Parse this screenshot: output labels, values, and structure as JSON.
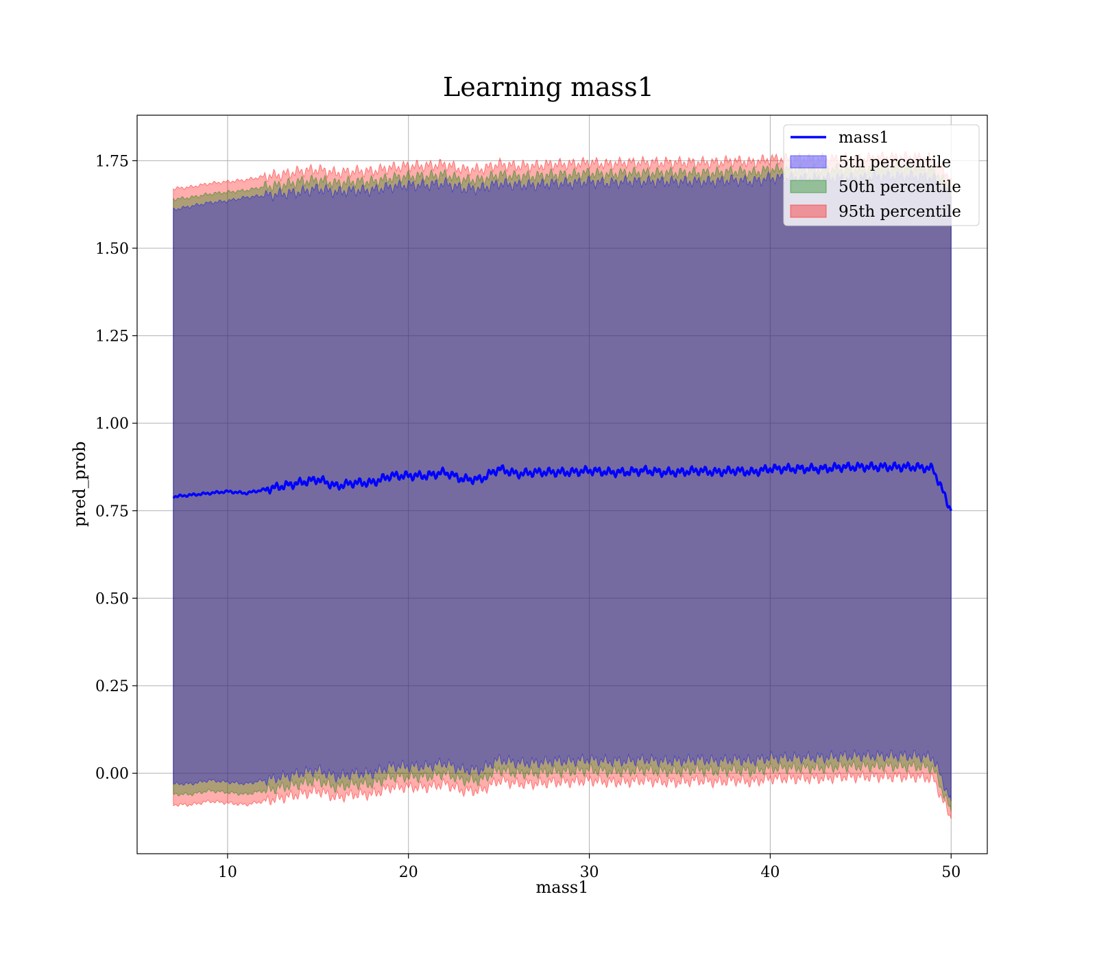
{
  "chart_data": {
    "type": "area",
    "title": "Learning mass1",
    "xlabel": "mass1",
    "ylabel": "pred_prob",
    "xlim": [
      5,
      52
    ],
    "ylim": [
      -0.23,
      1.88
    ],
    "x_ticks": [
      10,
      20,
      30,
      40,
      50
    ],
    "x_tick_labels": [
      "10",
      "20",
      "30",
      "40",
      "50"
    ],
    "y_ticks": [
      0.0,
      0.25,
      0.5,
      0.75,
      1.0,
      1.25,
      1.5,
      1.75
    ],
    "y_tick_labels": [
      "0.00",
      "0.25",
      "0.50",
      "0.75",
      "1.00",
      "1.25",
      "1.50",
      "1.75"
    ],
    "grid": true,
    "legend_position": "top-right",
    "line_series": {
      "name": "mass1",
      "color": "#0000ff",
      "x": [
        7,
        8,
        9,
        10,
        11,
        12,
        13,
        14,
        15,
        16,
        17,
        18,
        19,
        20,
        21,
        22,
        23,
        24,
        25,
        26,
        27,
        28,
        29,
        30,
        31,
        32,
        33,
        34,
        35,
        36,
        37,
        38,
        39,
        40,
        41,
        42,
        43,
        44,
        45,
        46,
        47,
        48,
        49,
        50
      ],
      "y": [
        0.79,
        0.795,
        0.8,
        0.805,
        0.8,
        0.81,
        0.82,
        0.83,
        0.84,
        0.82,
        0.83,
        0.83,
        0.85,
        0.85,
        0.85,
        0.86,
        0.84,
        0.84,
        0.87,
        0.855,
        0.86,
        0.86,
        0.86,
        0.865,
        0.86,
        0.86,
        0.865,
        0.86,
        0.86,
        0.865,
        0.86,
        0.865,
        0.86,
        0.87,
        0.87,
        0.87,
        0.87,
        0.875,
        0.875,
        0.875,
        0.875,
        0.875,
        0.87,
        0.75
      ]
    },
    "band_series": [
      {
        "name": "5th percentile",
        "color": "#0000ff",
        "upper": [
          1.61,
          1.62,
          1.63,
          1.635,
          1.645,
          1.65,
          1.655,
          1.66,
          1.67,
          1.66,
          1.665,
          1.665,
          1.675,
          1.68,
          1.68,
          1.685,
          1.67,
          1.67,
          1.685,
          1.68,
          1.68,
          1.685,
          1.685,
          1.69,
          1.685,
          1.69,
          1.69,
          1.69,
          1.69,
          1.69,
          1.69,
          1.695,
          1.69,
          1.7,
          1.7,
          1.7,
          1.7,
          1.7,
          1.7,
          1.705,
          1.705,
          1.705,
          1.7,
          1.65
        ],
        "lower": [
          -0.03,
          -0.03,
          -0.02,
          -0.025,
          -0.03,
          -0.02,
          -0.01,
          0.0,
          0.01,
          -0.01,
          0.0,
          0.0,
          0.02,
          0.02,
          0.02,
          0.03,
          0.01,
          0.01,
          0.04,
          0.03,
          0.03,
          0.035,
          0.035,
          0.04,
          0.035,
          0.035,
          0.04,
          0.035,
          0.035,
          0.04,
          0.035,
          0.04,
          0.035,
          0.045,
          0.045,
          0.045,
          0.045,
          0.05,
          0.05,
          0.05,
          0.05,
          0.05,
          0.045,
          -0.08
        ]
      },
      {
        "name": "50th percentile",
        "color": "#008000",
        "upper": [
          1.64,
          1.645,
          1.655,
          1.66,
          1.665,
          1.675,
          1.68,
          1.69,
          1.695,
          1.685,
          1.69,
          1.69,
          1.7,
          1.705,
          1.705,
          1.71,
          1.695,
          1.695,
          1.71,
          1.705,
          1.705,
          1.71,
          1.71,
          1.715,
          1.71,
          1.715,
          1.715,
          1.715,
          1.715,
          1.715,
          1.715,
          1.72,
          1.715,
          1.725,
          1.725,
          1.725,
          1.725,
          1.725,
          1.725,
          1.73,
          1.73,
          1.73,
          1.725,
          1.67
        ],
        "lower": [
          -0.06,
          -0.06,
          -0.05,
          -0.055,
          -0.06,
          -0.05,
          -0.04,
          -0.03,
          -0.02,
          -0.04,
          -0.03,
          -0.03,
          -0.01,
          -0.01,
          -0.01,
          0.0,
          -0.02,
          -0.02,
          0.01,
          0.0,
          0.0,
          0.005,
          0.005,
          0.01,
          0.005,
          0.005,
          0.01,
          0.005,
          0.005,
          0.01,
          0.005,
          0.01,
          0.005,
          0.015,
          0.015,
          0.015,
          0.015,
          0.02,
          0.02,
          0.02,
          0.02,
          0.02,
          0.015,
          -0.11
        ]
      },
      {
        "name": "95th percentile",
        "color": "#ff0000",
        "upper": [
          1.67,
          1.675,
          1.685,
          1.69,
          1.695,
          1.705,
          1.71,
          1.72,
          1.725,
          1.715,
          1.72,
          1.72,
          1.73,
          1.735,
          1.735,
          1.74,
          1.725,
          1.725,
          1.74,
          1.735,
          1.735,
          1.74,
          1.74,
          1.745,
          1.74,
          1.745,
          1.745,
          1.745,
          1.745,
          1.745,
          1.745,
          1.75,
          1.745,
          1.755,
          1.755,
          1.755,
          1.755,
          1.755,
          1.755,
          1.76,
          1.76,
          1.76,
          1.755,
          1.7
        ],
        "lower": [
          -0.09,
          -0.09,
          -0.08,
          -0.085,
          -0.09,
          -0.08,
          -0.07,
          -0.06,
          -0.05,
          -0.07,
          -0.06,
          -0.06,
          -0.04,
          -0.04,
          -0.04,
          -0.03,
          -0.05,
          -0.05,
          -0.02,
          -0.03,
          -0.03,
          -0.025,
          -0.025,
          -0.02,
          -0.025,
          -0.025,
          -0.02,
          -0.025,
          -0.025,
          -0.02,
          -0.025,
          -0.02,
          -0.025,
          -0.015,
          -0.015,
          -0.015,
          -0.015,
          -0.01,
          -0.01,
          -0.01,
          -0.01,
          -0.01,
          -0.015,
          -0.13
        ]
      }
    ]
  }
}
